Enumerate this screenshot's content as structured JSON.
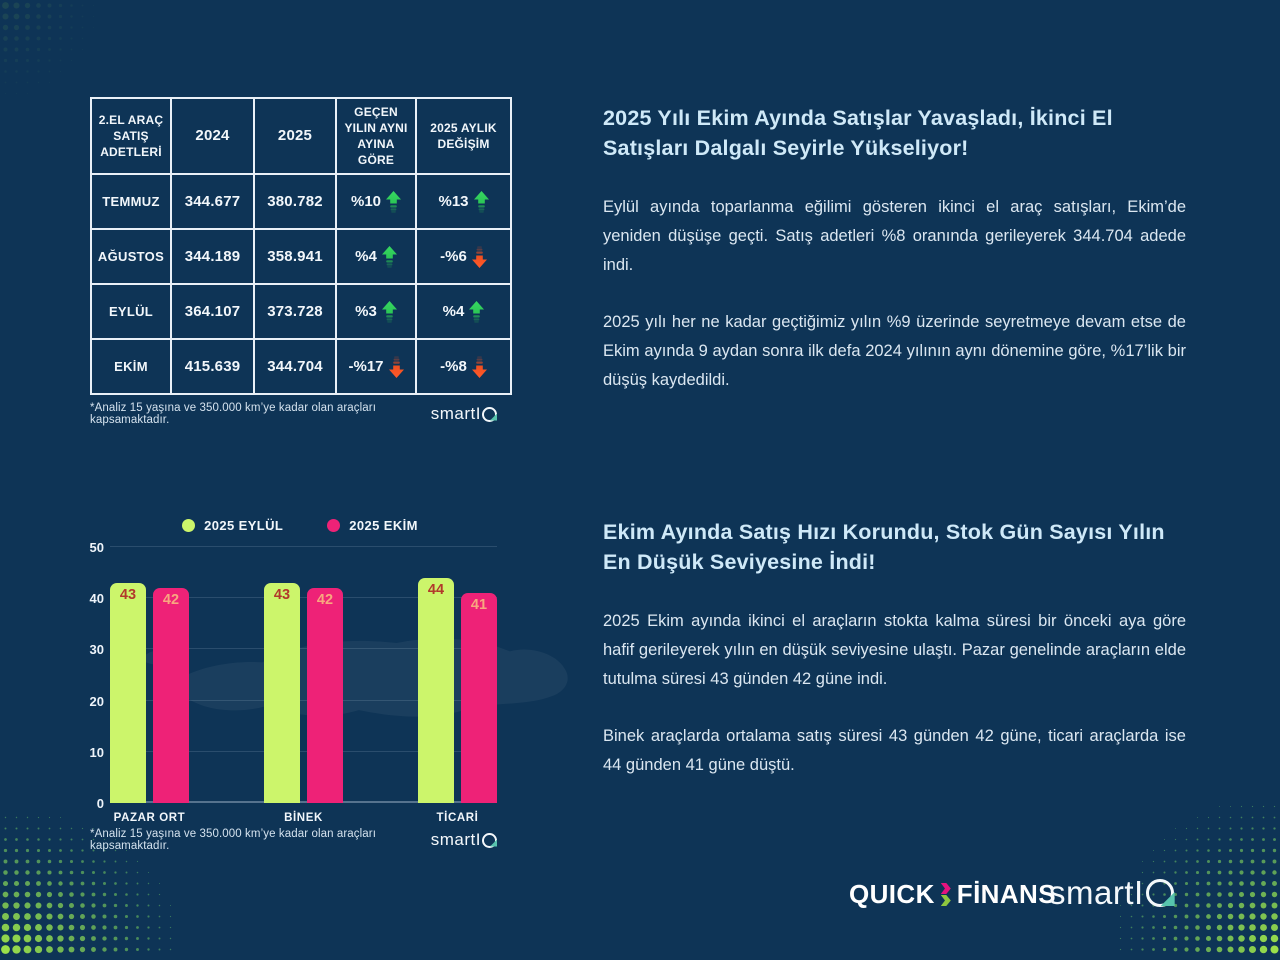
{
  "colors": {
    "background": "#0e3456",
    "table_border": "#e9f0f7",
    "title_blue": "#cfe9f8",
    "body_text": "#dbe7f1",
    "arrow_up_green": "#2bc655",
    "arrow_down_red": "#ef4f1f",
    "bar_green": "#ccf56b",
    "bar_pink": "#ee2277",
    "halftone_green": "#9be04a",
    "halftone_teal": "#2e7d6e",
    "smartiq_teal": "#57c3ad",
    "quickfinans_pink": "#e6137e",
    "quickfinans_green": "#8dc63f"
  },
  "table": {
    "headers": [
      "2.EL ARAÇ SATIŞ ADETLERİ",
      "2024",
      "2025",
      "GEÇEN YILIN AYNI AYINA GÖRE",
      "2025 AYLIK DEĞİŞİM"
    ],
    "rows": [
      {
        "month": "TEMMUZ",
        "y2024": "344.677",
        "y2025": "380.782",
        "yoy": "%10",
        "yoy_dir": "up",
        "mom": "%13",
        "mom_dir": "up"
      },
      {
        "month": "AĞUSTOS",
        "y2024": "344.189",
        "y2025": "358.941",
        "yoy": "%4",
        "yoy_dir": "up",
        "mom": "-%6",
        "mom_dir": "down"
      },
      {
        "month": "EYLÜL",
        "y2024": "364.107",
        "y2025": "373.728",
        "yoy": "%3",
        "yoy_dir": "up",
        "mom": "%4",
        "mom_dir": "up"
      },
      {
        "month": "EKİM",
        "y2024": "415.639",
        "y2025": "344.704",
        "yoy": "-%17",
        "yoy_dir": "down",
        "mom": "-%8",
        "mom_dir": "down"
      }
    ],
    "footnote": "*Analiz 15 yaşına ve 350.000 km’ye kadar olan araçları kapsamaktadır."
  },
  "sections": {
    "top": {
      "title": "2025 Yılı Ekim Ayında Satışlar Yavaşladı, İkinci El Satışları Dalgalı Seyirle Yükseliyor!",
      "paragraphs": [
        "Eylül ayında toparlanma eğilimi gösteren ikinci el araç satışları, Ekim’de yeniden düşüşe geçti. Satış adetleri %8 oranında gerileyerek 344.704 adede indi.",
        "2025 yılı her ne kadar geçtiğimiz yılın %9 üzerinde seyretmeye devam etse de Ekim ayında 9 aydan sonra ilk defa 2024 yılının aynı dönemine göre, %17’lik bir düşüş kaydedildi."
      ]
    },
    "bottom": {
      "title": "Ekim Ayında Satış Hızı Korundu, Stok Gün Sayısı Yılın En Düşük Seviyesine İndi!",
      "paragraphs": [
        "2025 Ekim ayında ikinci el araçların stokta kalma süresi bir önceki aya göre hafif gerileyerek yılın en düşük seviyesine ulaştı. Pazar genelinde araçların elde tutulma süresi 43 günden 42 güne indi.",
        "Binek araçlarda ortalama satış süresi 43 günden 42 güne, ticari araçlarda ise 44 günden 41 güne düştü."
      ]
    }
  },
  "chart_data": {
    "type": "bar",
    "categories": [
      "PAZAR ORT",
      "BİNEK",
      "TİCARİ"
    ],
    "series": [
      {
        "name": "2025 EYLÜL",
        "color": "#ccf56b",
        "label_color": "#b2392b",
        "values": [
          43,
          43,
          44
        ]
      },
      {
        "name": "2025 EKİM",
        "color": "#ee2277",
        "label_color": "#f8a77f",
        "values": [
          42,
          42,
          41
        ]
      }
    ],
    "title": "",
    "xlabel": "",
    "ylabel": "",
    "ylim": [
      0,
      50
    ],
    "yticks": [
      0,
      10,
      20,
      30,
      40,
      50
    ],
    "grid": true,
    "legend_position": "top",
    "footnote": "*Analiz 15 yaşına ve 350.000 km’ye kadar olan araçları kapsamaktadır."
  },
  "logos": {
    "quick": "QUICK",
    "finans": "FİNANS",
    "smartiq_text": "smart",
    "smartiq_i": "I"
  }
}
